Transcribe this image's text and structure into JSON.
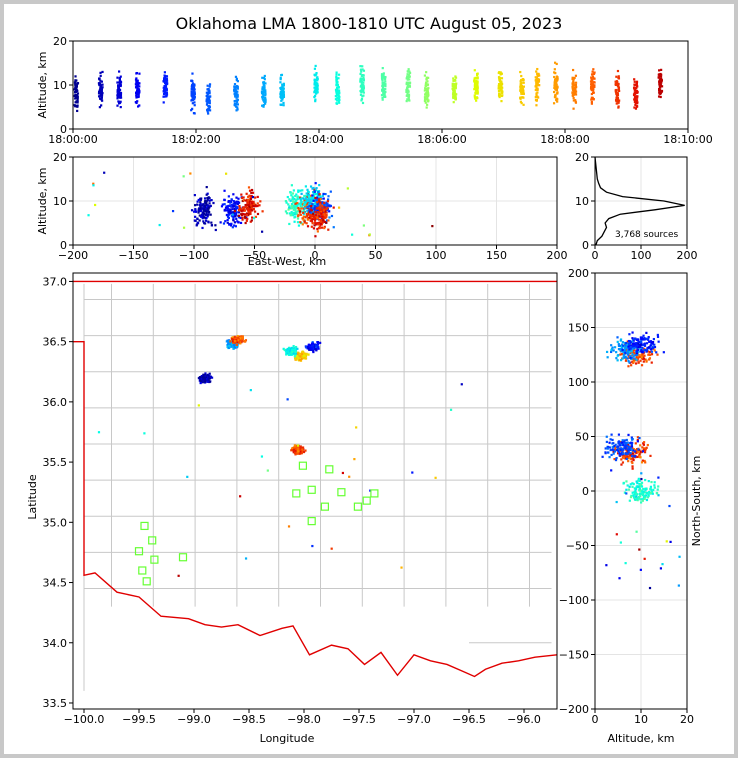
{
  "title": "Oklahoma LMA 1800-1810 UTC August 05, 2023",
  "chart_data": [
    {
      "panel": "altitude-vs-time",
      "type": "scatter",
      "ylabel": "Altitude, km",
      "xlabel": "",
      "ylim": [
        0,
        20
      ],
      "yticks": [
        "0",
        "10",
        "20"
      ],
      "xlim_minutes": [
        0,
        10
      ],
      "xticks": [
        "18:00:00",
        "18:02:00",
        "18:04:00",
        "18:06:00",
        "18:08:00",
        "18:10:00"
      ],
      "grid": true,
      "colormap": "time (blue to red)",
      "clusters": [
        {
          "t": 0.05,
          "alt": 8
        },
        {
          "t": 0.45,
          "alt": 9
        },
        {
          "t": 0.75,
          "alt": 9
        },
        {
          "t": 1.05,
          "alt": 9
        },
        {
          "t": 1.5,
          "alt": 10
        },
        {
          "t": 1.95,
          "alt": 8
        },
        {
          "t": 2.2,
          "alt": 7
        },
        {
          "t": 2.65,
          "alt": 8
        },
        {
          "t": 3.1,
          "alt": 8
        },
        {
          "t": 3.4,
          "alt": 8
        },
        {
          "t": 3.95,
          "alt": 10
        },
        {
          "t": 4.3,
          "alt": 9
        },
        {
          "t": 4.7,
          "alt": 10
        },
        {
          "t": 5.05,
          "alt": 10
        },
        {
          "t": 5.45,
          "alt": 10
        },
        {
          "t": 5.75,
          "alt": 9
        },
        {
          "t": 6.2,
          "alt": 9
        },
        {
          "t": 6.55,
          "alt": 10
        },
        {
          "t": 6.95,
          "alt": 10
        },
        {
          "t": 7.3,
          "alt": 9
        },
        {
          "t": 7.55,
          "alt": 10
        },
        {
          "t": 7.85,
          "alt": 10
        },
        {
          "t": 8.15,
          "alt": 9
        },
        {
          "t": 8.45,
          "alt": 10
        },
        {
          "t": 8.85,
          "alt": 9
        },
        {
          "t": 9.15,
          "alt": 8
        },
        {
          "t": 9.55,
          "alt": 10
        }
      ]
    },
    {
      "panel": "altitude-vs-east-west",
      "type": "scatter",
      "xlabel": "East-West, km",
      "ylabel": "Altitude, km",
      "xlim": [
        -200,
        200
      ],
      "ylim": [
        0,
        20
      ],
      "xticks": [
        "−200",
        "−150",
        "−100",
        "−50",
        "0",
        "50",
        "100",
        "150",
        "200"
      ],
      "yticks": [
        "0",
        "10",
        "20"
      ],
      "grid": true,
      "clusters": [
        {
          "x": -92,
          "alt": 8,
          "t": 0.4
        },
        {
          "x": -68,
          "alt": 8,
          "t": 1.2
        },
        {
          "x": -55,
          "alt": 9,
          "t": 9.2
        },
        {
          "x": -15,
          "alt": 9,
          "t": 4.5
        },
        {
          "x": -5,
          "alt": 8,
          "t": 8.8
        },
        {
          "x": -2,
          "alt": 10,
          "t": 3.8
        },
        {
          "x": 5,
          "alt": 9,
          "t": 2.0
        },
        {
          "x": 3,
          "alt": 7,
          "t": 9.0
        }
      ]
    },
    {
      "panel": "altitude-histogram",
      "type": "line",
      "xlim": [
        0,
        200
      ],
      "ylim": [
        0,
        20
      ],
      "xticks": [
        "0",
        "100",
        "200"
      ],
      "yticks": [
        "0",
        "10",
        "20"
      ],
      "annotation": "3,768 sources",
      "altitude": [
        0,
        1,
        2,
        3,
        4,
        5,
        6,
        7,
        8,
        9,
        10,
        11,
        12,
        13,
        14,
        15,
        16,
        17,
        18,
        19,
        20
      ],
      "count": [
        2,
        5,
        15,
        20,
        25,
        22,
        30,
        55,
        130,
        195,
        150,
        60,
        25,
        12,
        8,
        5,
        4,
        3,
        2,
        1,
        0
      ]
    },
    {
      "panel": "plan-view-map",
      "type": "scatter",
      "xlabel": "Longitude",
      "ylabel": "Latitude",
      "xlim": [
        -100.1,
        -95.7
      ],
      "ylim": [
        33.45,
        37.07
      ],
      "xticks": [
        "−100.0",
        "−99.5",
        "−99.0",
        "−98.5",
        "−98.0",
        "−97.5",
        "−97.0",
        "−96.5",
        "−96.0"
      ],
      "yticks": [
        "33.5",
        "34.0",
        "34.5",
        "35.0",
        "35.5",
        "36.0",
        "36.5",
        "37.0"
      ],
      "clusters": [
        {
          "lon": -98.65,
          "lat": 36.48,
          "t": 3.0
        },
        {
          "lon": -98.6,
          "lat": 36.52,
          "t": 8.5
        },
        {
          "lon": -97.92,
          "lat": 36.46,
          "t": 1.2
        },
        {
          "lon": -98.02,
          "lat": 36.38,
          "t": 7.2
        },
        {
          "lon": -98.12,
          "lat": 36.42,
          "t": 4.2
        },
        {
          "lon": -98.05,
          "lat": 35.6,
          "t": 8.7
        },
        {
          "lon": -98.9,
          "lat": 36.2,
          "t": 0.3
        }
      ],
      "stations": [
        {
          "lon": -99.45,
          "lat": 34.97
        },
        {
          "lon": -99.38,
          "lat": 34.85
        },
        {
          "lon": -99.5,
          "lat": 34.76
        },
        {
          "lon": -99.36,
          "lat": 34.69
        },
        {
          "lon": -99.47,
          "lat": 34.6
        },
        {
          "lon": -99.43,
          "lat": 34.51
        },
        {
          "lon": -99.1,
          "lat": 34.71
        },
        {
          "lon": -98.07,
          "lat": 35.24
        },
        {
          "lon": -97.93,
          "lat": 35.27
        },
        {
          "lon": -98.01,
          "lat": 35.47
        },
        {
          "lon": -97.77,
          "lat": 35.44
        },
        {
          "lon": -97.81,
          "lat": 35.13
        },
        {
          "lon": -97.93,
          "lat": 35.01
        },
        {
          "lon": -97.66,
          "lat": 35.25
        },
        {
          "lon": -97.51,
          "lat": 35.13
        },
        {
          "lon": -97.43,
          "lat": 35.18
        },
        {
          "lon": -97.36,
          "lat": 35.24
        }
      ]
    },
    {
      "panel": "north-south-vs-altitude",
      "type": "scatter",
      "xlabel": "Altitude, km",
      "ylabel": "North-South, km",
      "xlim": [
        0,
        20
      ],
      "ylim": [
        -200,
        200
      ],
      "xticks": [
        "0",
        "10",
        "20"
      ],
      "yticks": [
        "−200",
        "−150",
        "−100",
        "−50",
        "0",
        "50",
        "100",
        "150",
        "200"
      ],
      "grid": true,
      "clusters": [
        {
          "alt": 9,
          "ns": 125,
          "t": 8.6
        },
        {
          "alt": 7,
          "ns": 130,
          "t": 3.0
        },
        {
          "alt": 10,
          "ns": 135,
          "t": 1.5
        },
        {
          "alt": 8,
          "ns": 35,
          "t": 8.8
        },
        {
          "alt": 6,
          "ns": 40,
          "t": 2.0
        },
        {
          "alt": 10,
          "ns": 0,
          "t": 4.5
        }
      ]
    }
  ]
}
